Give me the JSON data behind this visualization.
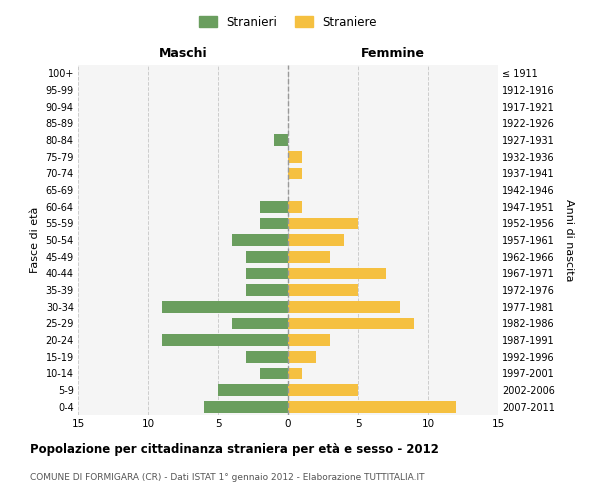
{
  "age_groups": [
    "0-4",
    "5-9",
    "10-14",
    "15-19",
    "20-24",
    "25-29",
    "30-34",
    "35-39",
    "40-44",
    "45-49",
    "50-54",
    "55-59",
    "60-64",
    "65-69",
    "70-74",
    "75-79",
    "80-84",
    "85-89",
    "90-94",
    "95-99",
    "100+"
  ],
  "birth_years": [
    "2007-2011",
    "2002-2006",
    "1997-2001",
    "1992-1996",
    "1987-1991",
    "1982-1986",
    "1977-1981",
    "1972-1976",
    "1967-1971",
    "1962-1966",
    "1957-1961",
    "1952-1956",
    "1947-1951",
    "1942-1946",
    "1937-1941",
    "1932-1936",
    "1927-1931",
    "1922-1926",
    "1917-1921",
    "1912-1916",
    "≤ 1911"
  ],
  "males": [
    6,
    5,
    2,
    3,
    9,
    4,
    9,
    3,
    3,
    3,
    4,
    2,
    2,
    0,
    0,
    0,
    1,
    0,
    0,
    0,
    0
  ],
  "females": [
    12,
    5,
    1,
    2,
    3,
    9,
    8,
    5,
    7,
    3,
    4,
    5,
    1,
    0,
    1,
    1,
    0,
    0,
    0,
    0,
    0
  ],
  "male_color": "#6a9e5e",
  "female_color": "#f5c040",
  "title": "Popolazione per cittadinanza straniera per età e sesso - 2012",
  "subtitle": "COMUNE DI FORMIGARA (CR) - Dati ISTAT 1° gennaio 2012 - Elaborazione TUTTITALIA.IT",
  "xlabel_left": "Maschi",
  "xlabel_right": "Femmine",
  "ylabel_left": "Fasce di età",
  "ylabel_right": "Anni di nascita",
  "xlim": 15,
  "legend_stranieri": "Stranieri",
  "legend_straniere": "Straniere",
  "bg_color": "#f5f5f5",
  "grid_color": "#cccccc"
}
